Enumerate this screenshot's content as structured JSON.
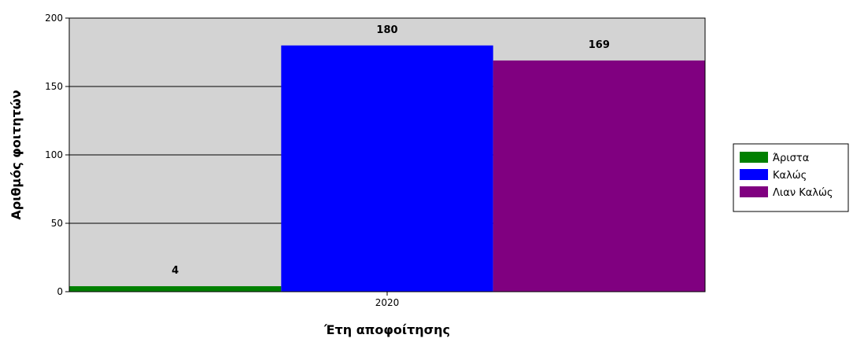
{
  "chart_data": {
    "type": "bar",
    "categories": [
      "2020"
    ],
    "series": [
      {
        "name": "Άριστα",
        "values": [
          4
        ],
        "color": "#008000"
      },
      {
        "name": "Καλώς",
        "values": [
          180
        ],
        "color": "#0000ff"
      },
      {
        "name": "Λιαν Καλώς",
        "values": [
          169
        ],
        "color": "#800080"
      }
    ],
    "xlabel": "Έτη αποφοίτησης",
    "ylabel": "Αριθμός φοιτητών",
    "ylim": [
      0,
      200
    ],
    "yticks": [
      0,
      50,
      100,
      150,
      200
    ],
    "grid": true,
    "legend": "right",
    "plot_background": "#d3d3d3"
  }
}
